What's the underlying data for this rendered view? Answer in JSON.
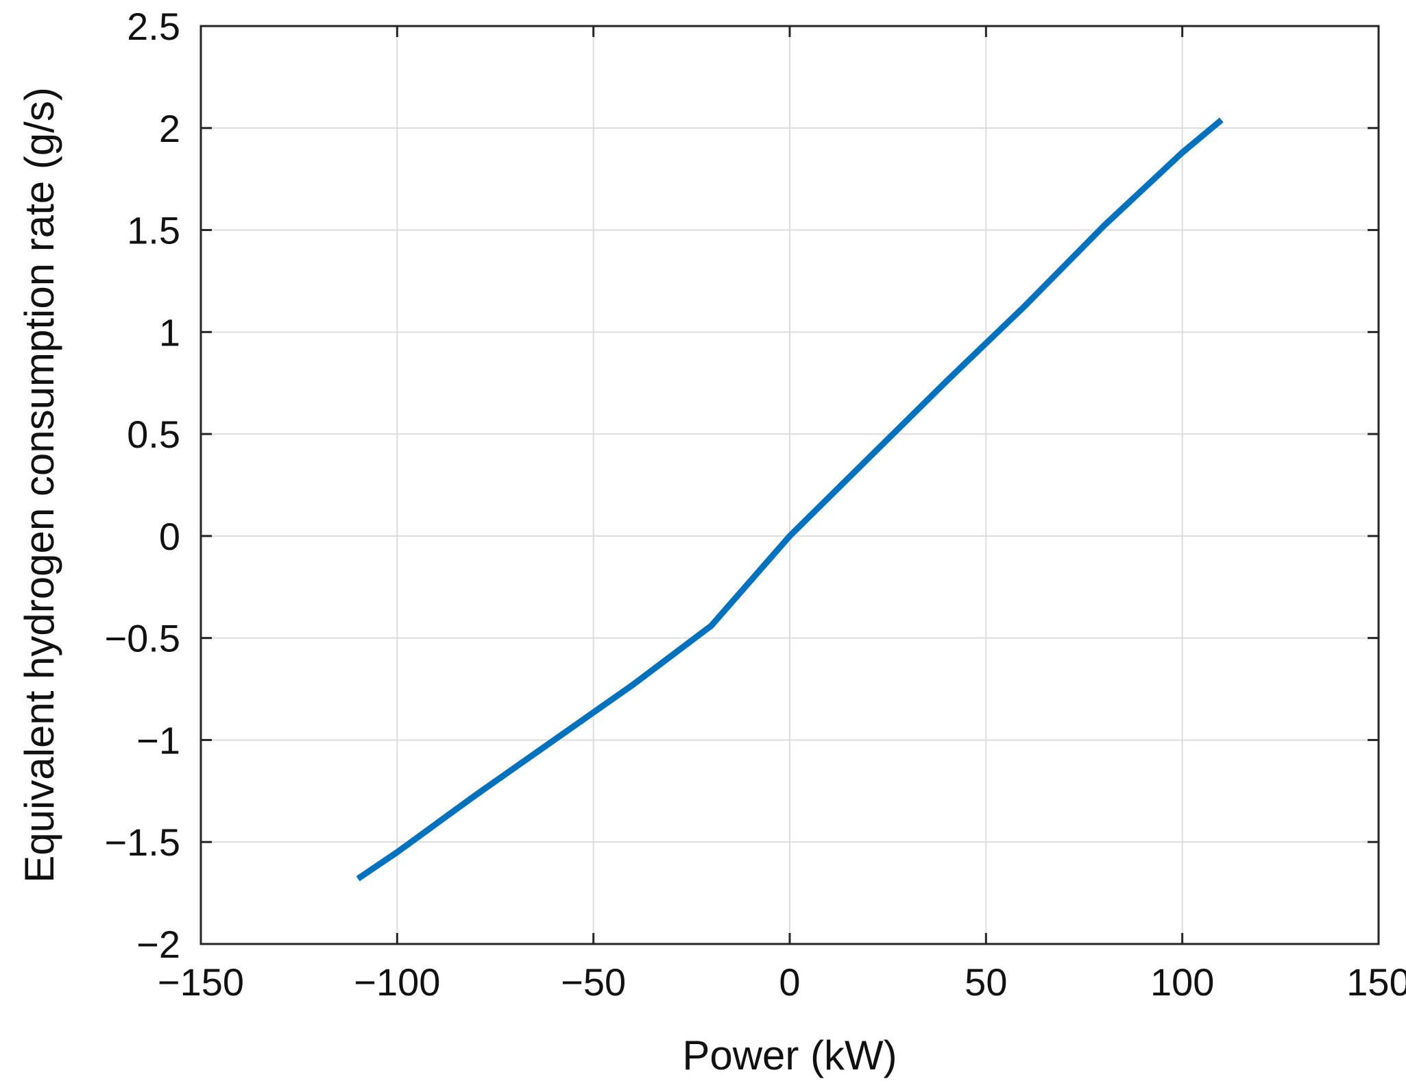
{
  "chart_data": {
    "type": "line",
    "title": "",
    "xlabel": "Power (kW)",
    "ylabel": "Equivalent hydrogen consumption rate (g/s)",
    "xlim": [
      -150,
      150
    ],
    "ylim": [
      -2,
      2.5
    ],
    "xticks": [
      -150,
      -100,
      -50,
      0,
      50,
      100,
      150
    ],
    "yticks": [
      -2,
      -1.5,
      -1,
      -0.5,
      0,
      0.5,
      1,
      1.5,
      2,
      2.5
    ],
    "xtick_labels": [
      "−150",
      "−100",
      "−50",
      "0",
      "50",
      "100",
      "150"
    ],
    "ytick_labels": [
      "−2",
      "−1.5",
      "−1",
      "−0.5",
      "0",
      "0.5",
      "1",
      "1.5",
      "2",
      "2.5"
    ],
    "grid": true,
    "legend": "none",
    "series": [
      {
        "color": "#0072BD",
        "x": [
          -110,
          -100,
          -80,
          -60,
          -40,
          -20,
          0,
          20,
          40,
          60,
          80,
          100,
          110
        ],
        "y": [
          -1.68,
          -1.55,
          -1.27,
          -1.0,
          -0.73,
          -0.44,
          0.0,
          0.38,
          0.76,
          1.13,
          1.52,
          1.88,
          2.04
        ]
      }
    ]
  }
}
